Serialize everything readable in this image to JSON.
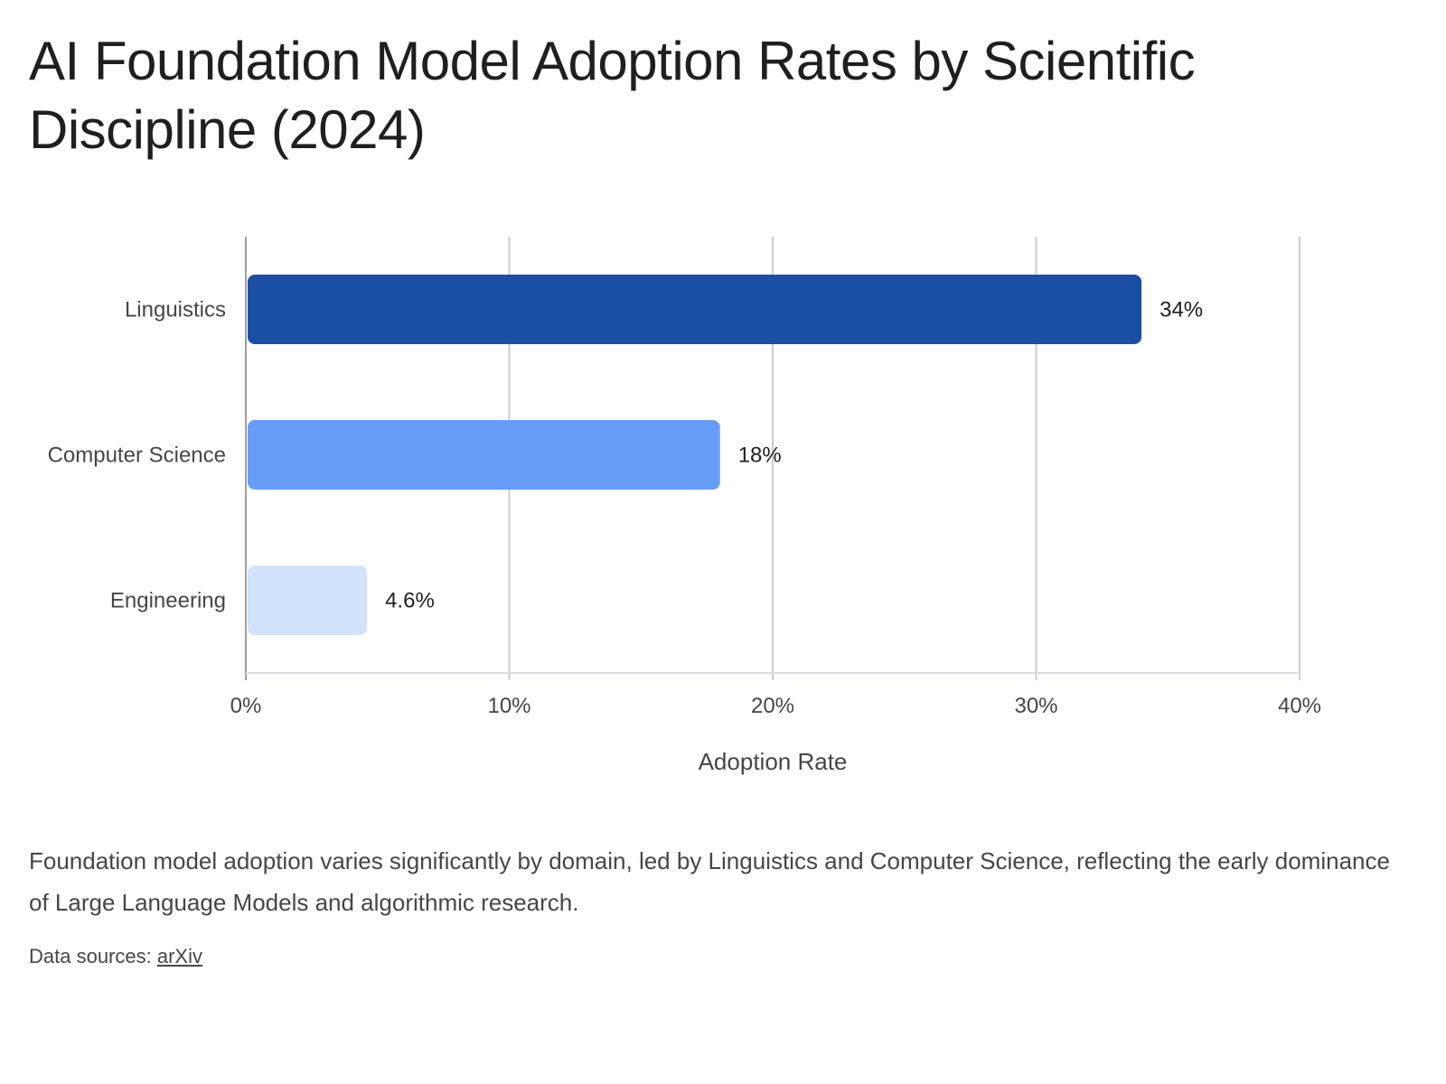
{
  "title": "AI Foundation Model Adoption Rates by Scientific Discipline (2024)",
  "description": "Foundation model adoption varies significantly by domain, led by Linguistics and Computer Science, reflecting the early dominance of Large Language Models and algorithmic research.",
  "sources": {
    "label": "Data sources:",
    "link_text": "arXiv"
  },
  "chart_data": {
    "type": "bar",
    "orientation": "horizontal",
    "title": "AI Foundation Model Adoption Rates by Scientific Discipline (2024)",
    "categories": [
      "Linguistics",
      "Computer Science",
      "Engineering"
    ],
    "values": [
      34,
      18,
      4.6
    ],
    "value_labels": [
      "34%",
      "18%",
      "4.6%"
    ],
    "colors": [
      "#1a4fa3",
      "#669df6",
      "#d2e3fc"
    ],
    "xlabel": "Adoption Rate",
    "ylabel": "",
    "xlim": [
      0,
      40
    ],
    "ticks": [
      0,
      10,
      20,
      30,
      40
    ],
    "tick_labels": [
      "0%",
      "10%",
      "20%",
      "30%",
      "40%"
    ],
    "grid": true,
    "legend": "none"
  }
}
